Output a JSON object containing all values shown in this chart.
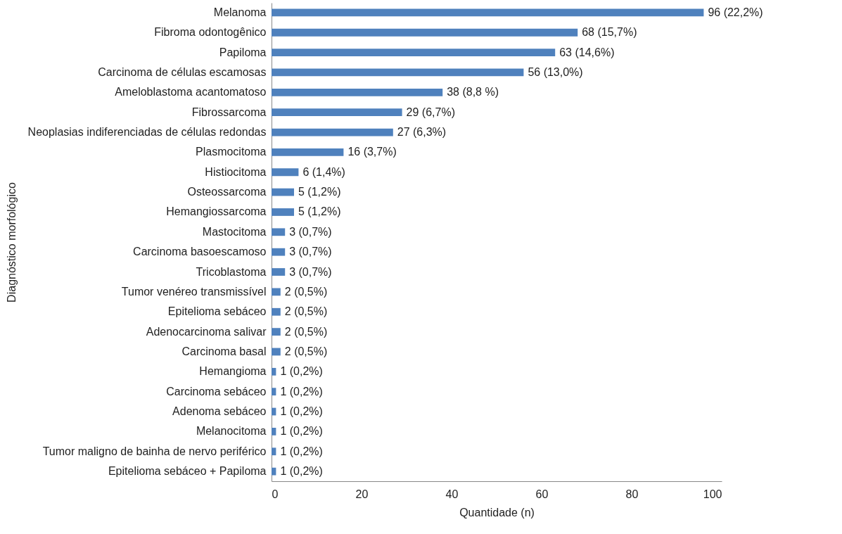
{
  "chart_data": {
    "type": "bar",
    "orientation": "horizontal",
    "xlabel": "Quantidade (n)",
    "ylabel": "Diagnóstico morfológico",
    "categories": [
      "Melanoma",
      "Fibroma odontogênico",
      "Papiloma",
      "Carcinoma de células escamosas",
      "Ameloblastoma acantomatoso",
      "Fibrossarcoma",
      "Neoplasias indiferenciadas de células redondas",
      "Plasmocitoma",
      "Histiocitoma",
      "Osteossarcoma",
      "Hemangiossarcoma",
      "Mastocitoma",
      "Carcinoma basoescamoso",
      "Tricoblastoma",
      "Tumor venéreo transmissível",
      "Epitelioma sebáceo",
      "Adenocarcinoma salivar",
      "Carcinoma basal",
      "Hemangioma",
      "Carcinoma sebáceo",
      "Adenoma sebáceo",
      "Melanocitoma",
      "Tumor maligno de bainha de nervo periférico",
      "Epitelioma sebáceo + Papiloma"
    ],
    "values": [
      96,
      68,
      63,
      56,
      38,
      29,
      27,
      16,
      6,
      5,
      5,
      3,
      3,
      3,
      2,
      2,
      2,
      2,
      1,
      1,
      1,
      1,
      1,
      1
    ],
    "value_labels": [
      "96 (22,2%)",
      "68 (15,7%)",
      "63 (14,6%)",
      "56 (13,0%)",
      "38 (8,8 %)",
      "29 (6,7%)",
      "27 (6,3%)",
      "16 (3,7%)",
      "6 (1,4%)",
      "5 (1,2%)",
      "5 (1,2%)",
      "3 (0,7%)",
      "3 (0,7%)",
      "3 (0,7%)",
      "2 (0,5%)",
      "2 (0,5%)",
      "2 (0,5%)",
      "2 (0,5%)",
      "1 (0,2%)",
      "1 (0,2%)",
      "1 (0,2%)",
      "1 (0,2%)",
      "1 (0,2%)",
      "1 (0,2%)"
    ],
    "color": "#4f81bd",
    "xlim": [
      0,
      100
    ],
    "xticks": [
      0,
      20,
      40,
      60,
      80,
      100
    ],
    "grid": false
  }
}
